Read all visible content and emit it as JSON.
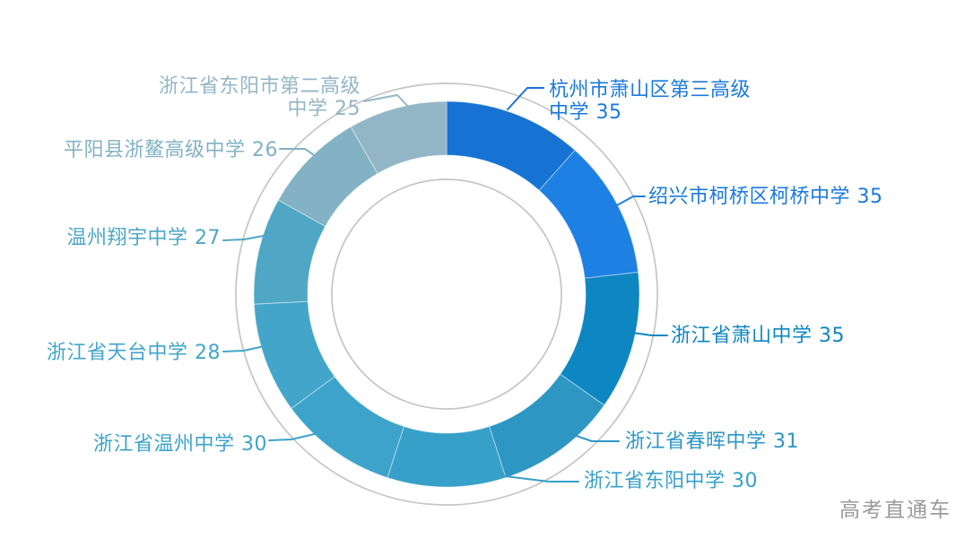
{
  "watermark": "高考直通车",
  "chart_data": {
    "type": "pie",
    "subtype": "donut",
    "title": "",
    "direction": "clockwise",
    "start_angle_deg": 0,
    "total": 302,
    "legend_position": "none",
    "grid": false,
    "decoration_ring_color": "#c5c5c5",
    "background_color": "#ffffff",
    "segments": [
      {
        "label": "杭州市萧山区第三高级中学",
        "value": 35,
        "color": "#1673d4",
        "label_color": "#1b79dd"
      },
      {
        "label": "绍兴市柯桥区柯桥中学",
        "value": 35,
        "color": "#1d80e2",
        "label_color": "#1b79dd"
      },
      {
        "label": "浙江省萧山中学",
        "value": 35,
        "color": "#0e86c2",
        "label_color": "#0e86c2"
      },
      {
        "label": "浙江省春晖中学",
        "value": 31,
        "color": "#2d96c3",
        "label_color": "#2d96c3"
      },
      {
        "label": "浙江省东阳中学",
        "value": 30,
        "color": "#37a0c8",
        "label_color": "#37a0c8"
      },
      {
        "label": "浙江省温州中学",
        "value": 30,
        "color": "#3da3ca",
        "label_color": "#3da3ca"
      },
      {
        "label": "浙江省天台中学",
        "value": 28,
        "color": "#43a5ca",
        "label_color": "#43a5ca"
      },
      {
        "label": "温州翔宇中学",
        "value": 27,
        "color": "#4fa7c5",
        "label_color": "#4fa7c5"
      },
      {
        "label": "平阳县浙鳌高级中学",
        "value": 26,
        "color": "#82b2c3",
        "label_color": "#82b2c3"
      },
      {
        "label": "浙江省东阳市第二高级中学",
        "value": 25,
        "color": "#93b6c7",
        "label_color": "#93b6c7"
      }
    ]
  }
}
